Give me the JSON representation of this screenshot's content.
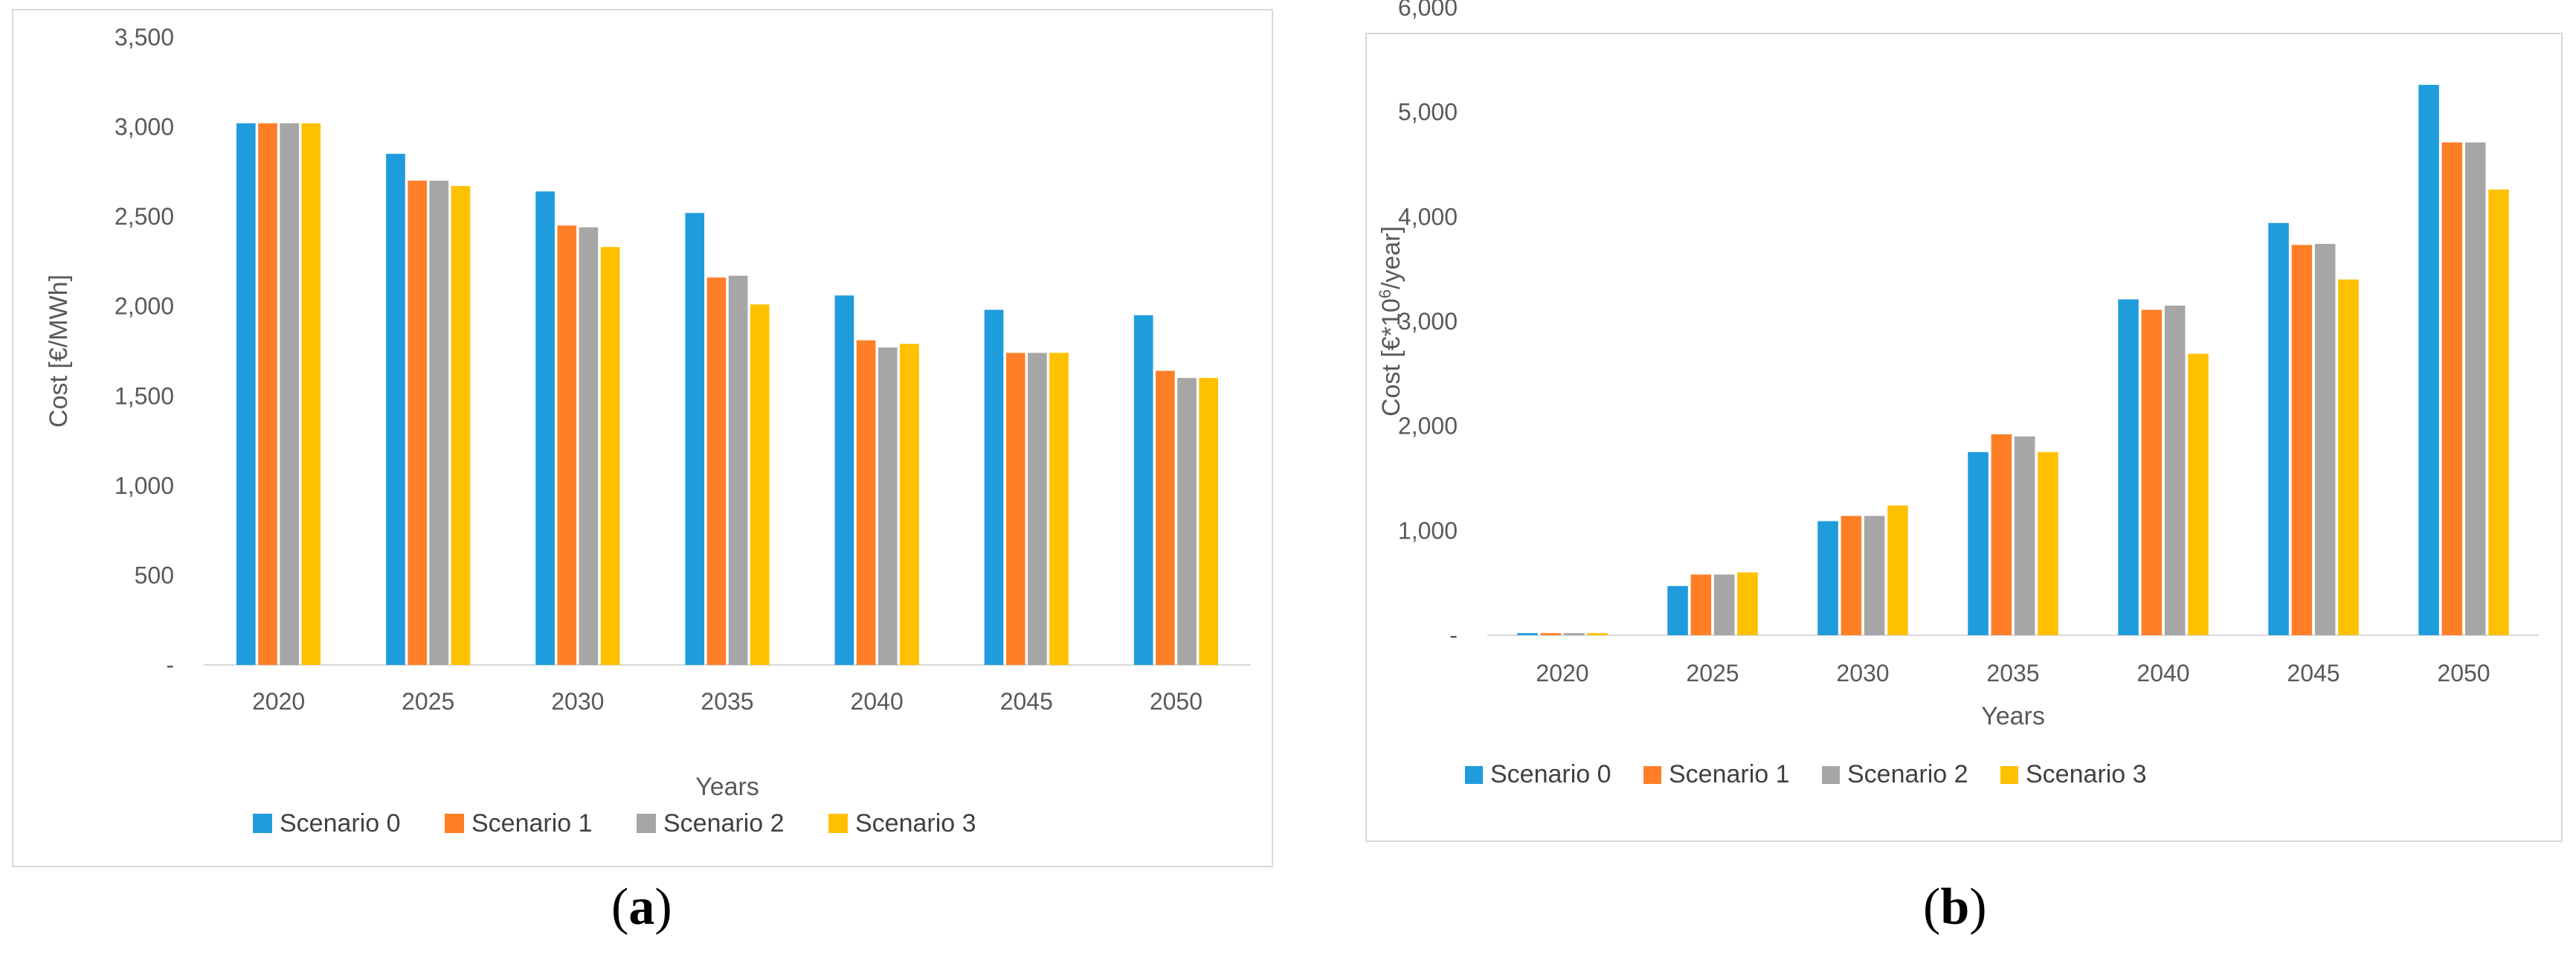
{
  "chart_data": [
    {
      "type": "bar",
      "panel": "a",
      "categories": [
        "2020",
        "2025",
        "2030",
        "2035",
        "2040",
        "2045",
        "2050"
      ],
      "series": [
        {
          "name": "Scenario 0",
          "color": "#1f9cdc",
          "values": [
            3020,
            2850,
            2640,
            2520,
            2060,
            1980,
            1950
          ]
        },
        {
          "name": "Scenario 1",
          "color": "#ff7f27",
          "values": [
            3020,
            2700,
            2450,
            2160,
            1810,
            1740,
            1640
          ]
        },
        {
          "name": "Scenario 2",
          "color": "#a6a6a6",
          "values": [
            3020,
            2700,
            2440,
            2170,
            1770,
            1740,
            1600
          ]
        },
        {
          "name": "Scenario 3",
          "color": "#ffc000",
          "values": [
            3020,
            2670,
            2330,
            2010,
            1790,
            1740,
            1600
          ]
        }
      ],
      "yticks": [
        "-",
        "500",
        "1,000",
        "1,500",
        "2,000",
        "2,500",
        "3,000",
        "3,500"
      ],
      "ylim": [
        0,
        3500
      ],
      "title": "",
      "xlabel": "Years",
      "ylabel": "Cost [€/MWh]",
      "legend_position": "bottom",
      "grid": false
    },
    {
      "type": "bar",
      "panel": "b",
      "categories": [
        "2020",
        "2025",
        "2030",
        "2035",
        "2040",
        "2045",
        "2050"
      ],
      "series": [
        {
          "name": "Scenario 0",
          "color": "#1f9cdc",
          "values": [
            20,
            470,
            1090,
            1750,
            3210,
            3940,
            5260
          ]
        },
        {
          "name": "Scenario 1",
          "color": "#ff7f27",
          "values": [
            20,
            580,
            1140,
            1920,
            3110,
            3730,
            4710
          ]
        },
        {
          "name": "Scenario 2",
          "color": "#a6a6a6",
          "values": [
            20,
            580,
            1140,
            1900,
            3150,
            3740,
            4710
          ]
        },
        {
          "name": "Scenario 3",
          "color": "#ffc000",
          "values": [
            20,
            600,
            1240,
            1750,
            2690,
            3400,
            4260
          ]
        }
      ],
      "yticks": [
        "-",
        "1,000",
        "2,000",
        "3,000",
        "4,000",
        "5,000",
        "6,000"
      ],
      "ylim": [
        0,
        6000
      ],
      "title": "",
      "xlabel": "Years",
      "ylabel_parts": {
        "before": "Cost [€*10",
        "sup": "6",
        "after": "/year]"
      },
      "legend_position": "bottom",
      "grid": false
    }
  ],
  "captions": {
    "a": {
      "open": "(",
      "letter": "a",
      "close": ")"
    },
    "b": {
      "open": "(",
      "letter": "b",
      "close": ")"
    }
  }
}
